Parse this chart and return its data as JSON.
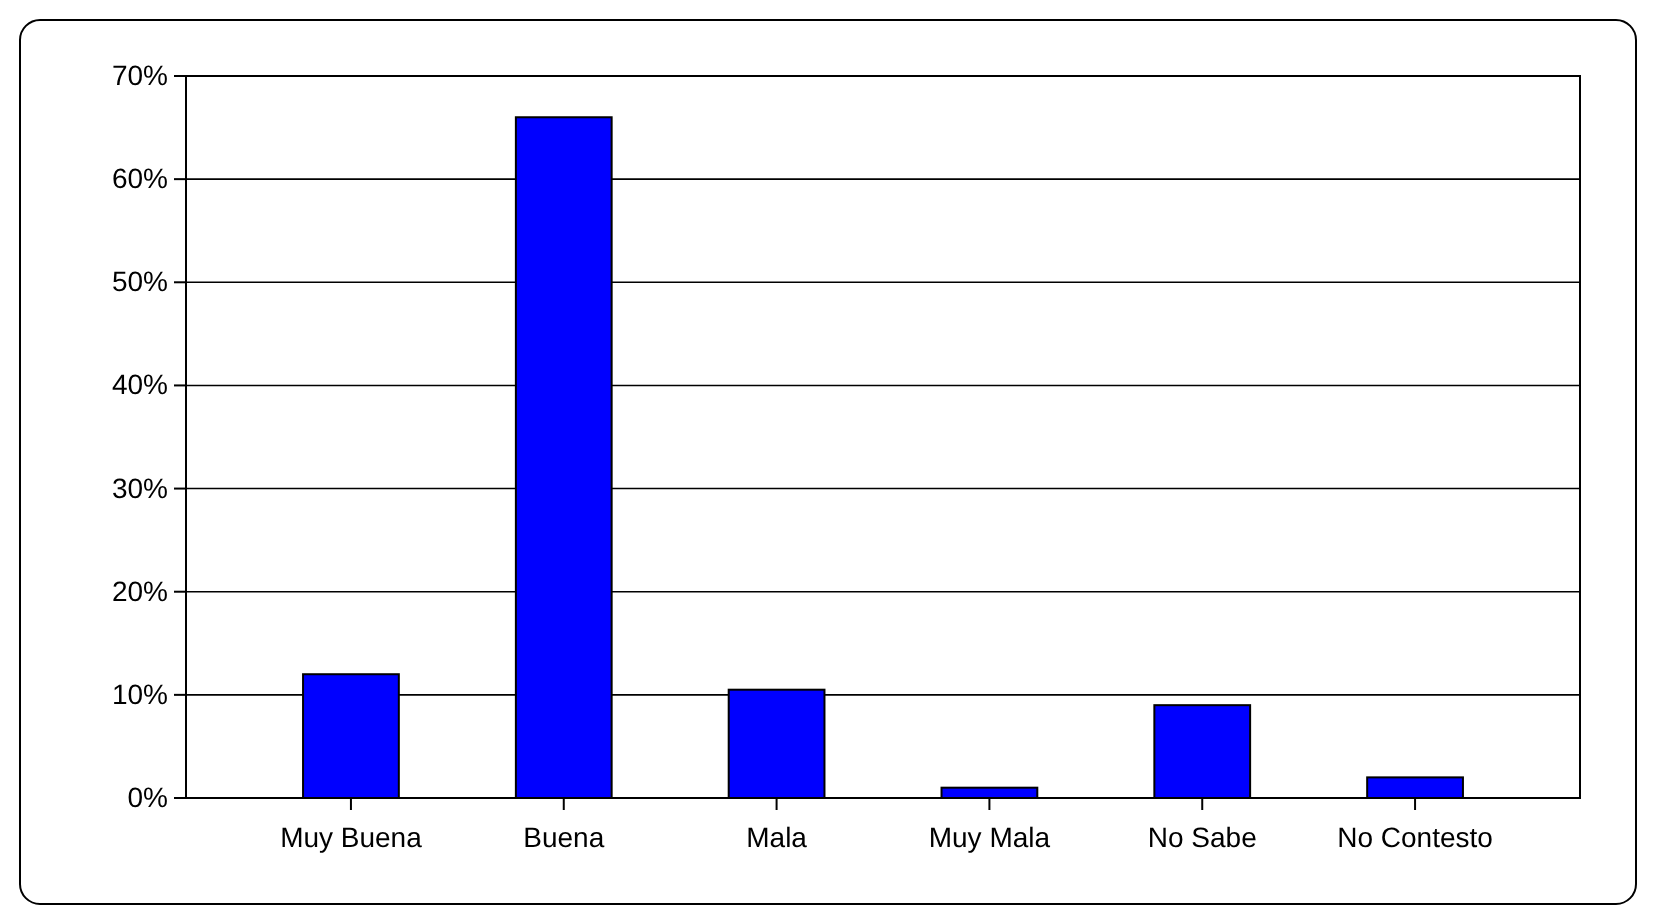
{
  "chart_data": {
    "type": "bar",
    "categories": [
      "Muy Buena",
      "Buena",
      "Mala",
      "Muy Mala",
      "No Sabe",
      "No Contesto"
    ],
    "values": [
      12,
      66,
      10.5,
      1,
      9,
      2
    ],
    "color": "#0000ff",
    "ylim": [
      0,
      70
    ],
    "yticks": [
      {
        "value": 0,
        "label": "0%"
      },
      {
        "value": 10,
        "label": "10%"
      },
      {
        "value": 20,
        "label": "20%"
      },
      {
        "value": 30,
        "label": "30%"
      },
      {
        "value": 40,
        "label": "40%"
      },
      {
        "value": 50,
        "label": "50%"
      },
      {
        "value": 60,
        "label": "60%"
      },
      {
        "value": 70,
        "label": "70%"
      }
    ],
    "grid": "y"
  }
}
